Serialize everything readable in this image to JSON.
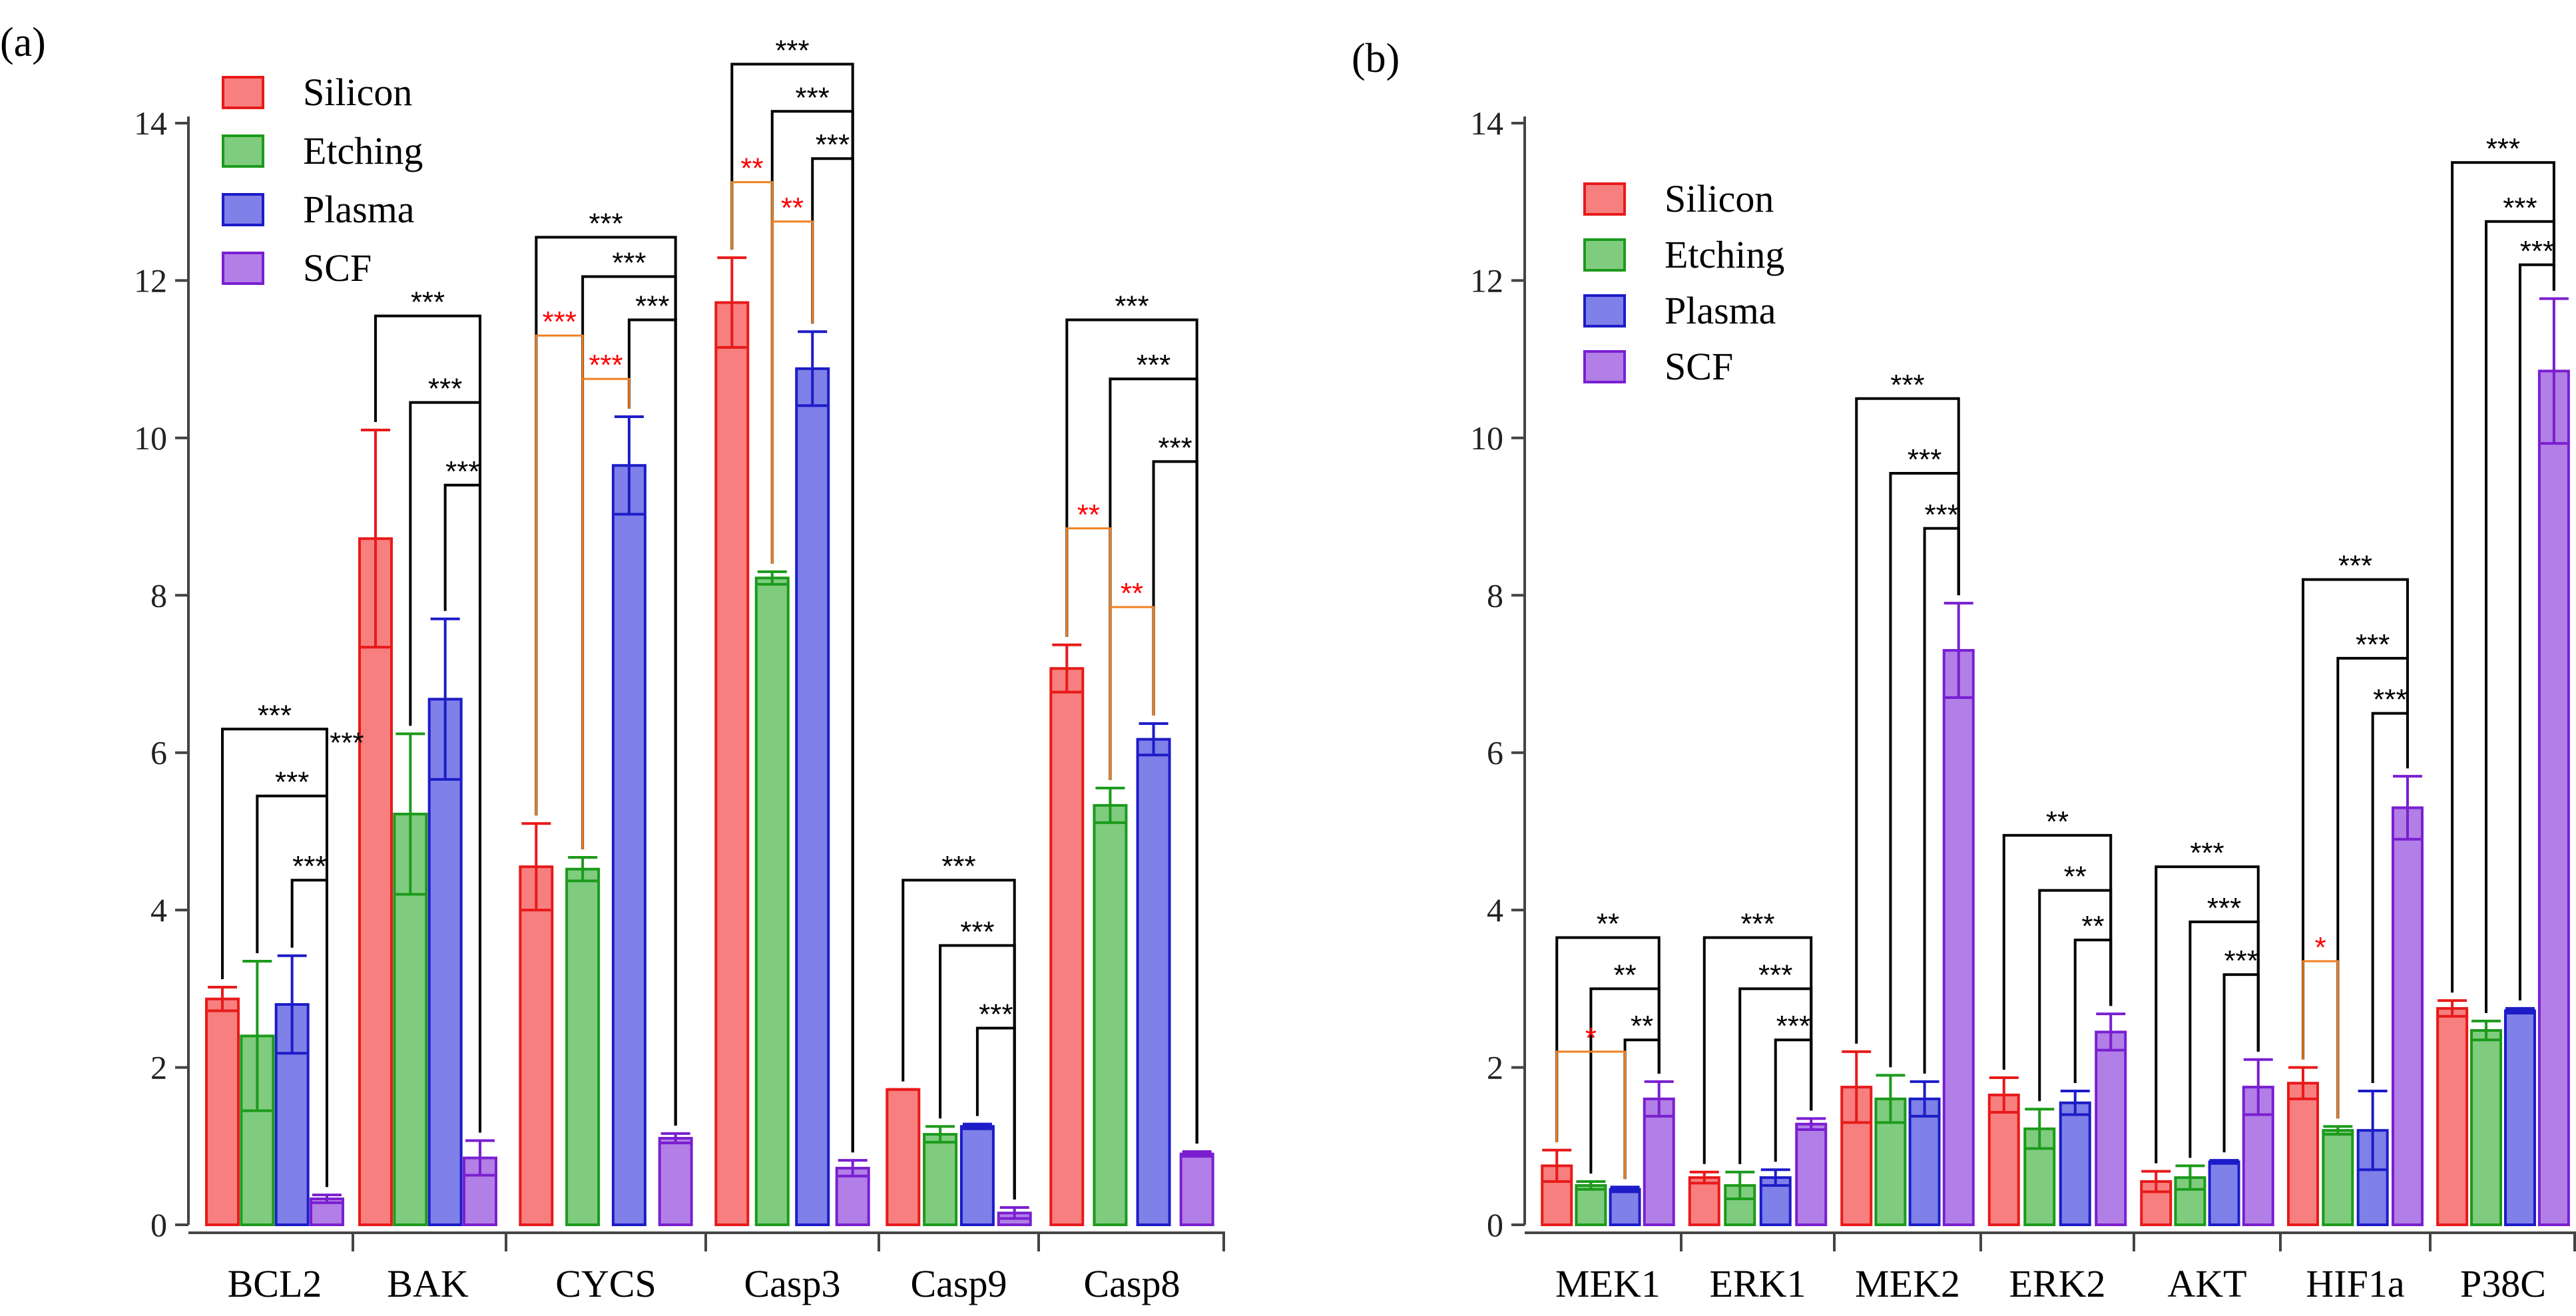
{
  "colors": {
    "Silicon": {
      "fill": "#f77f7f",
      "stroke": "#e81a1a"
    },
    "Etching": {
      "fill": "#7fcc7f",
      "stroke": "#1c9a1c"
    },
    "Plasma": {
      "fill": "#7f80e8",
      "stroke": "#1c1cc8"
    },
    "SCF": {
      "fill": "#b27fe6",
      "stroke": "#7a1fd0"
    },
    "sig_black": "#000000",
    "sig_orange": "#f08020",
    "sig_red_text": "#ff0000"
  },
  "chart_data": [
    {
      "type": "bar",
      "panel_label": "(a)",
      "title": "",
      "xlabel": "",
      "ylabel": "",
      "ylim": [
        0,
        14
      ],
      "yticks": [
        "0",
        "2",
        "4",
        "6",
        "8",
        "10",
        "12",
        "14"
      ],
      "legend_position": "top-left",
      "categories": [
        "BCL2",
        "BAK",
        "CYCS",
        "Casp3",
        "Casp9",
        "Casp8"
      ],
      "series": [
        {
          "name": "Silicon",
          "values": [
            2.87,
            8.72,
            4.55,
            11.72,
            1.72,
            7.07
          ],
          "errors": [
            0.15,
            1.38,
            0.55,
            0.57,
            0.0,
            0.3
          ]
        },
        {
          "name": "Etching",
          "values": [
            2.4,
            5.22,
            4.52,
            8.22,
            1.15,
            5.33
          ],
          "errors": [
            0.95,
            1.02,
            0.15,
            0.08,
            0.1,
            0.22
          ]
        },
        {
          "name": "Plasma",
          "values": [
            2.8,
            6.68,
            9.65,
            10.88,
            1.25,
            6.17
          ],
          "errors": [
            0.62,
            1.02,
            0.62,
            0.47,
            0.03,
            0.2
          ]
        },
        {
          "name": "SCF",
          "values": [
            0.33,
            0.85,
            1.1,
            0.72,
            0.15,
            0.9
          ],
          "errors": [
            0.05,
            0.22,
            0.06,
            0.1,
            0.07,
            0.03
          ]
        }
      ],
      "significance": [
        {
          "category": "BCL2",
          "from": 0,
          "to": 3,
          "y": 6.3,
          "label": "***",
          "color": "sig_black"
        },
        {
          "category": "BCL2",
          "from": 1,
          "to": 3,
          "y": 5.45,
          "label": "***",
          "color": "sig_black"
        },
        {
          "category": "BCL2",
          "from": 2,
          "to": 3,
          "y": 4.38,
          "label": "***",
          "color": "sig_black"
        },
        {
          "category": "BCL2",
          "from": 3,
          "to": 3,
          "y": 5.95,
          "label": "***",
          "color": "sig_black"
        },
        {
          "category": "BAK",
          "from": 0,
          "to": 3,
          "y": 11.55,
          "label": "***",
          "color": "sig_black"
        },
        {
          "category": "BAK",
          "from": 1,
          "to": 3,
          "y": 10.45,
          "label": "***",
          "color": "sig_black"
        },
        {
          "category": "BAK",
          "from": 2,
          "to": 3,
          "y": 9.4,
          "label": "***",
          "color": "sig_black"
        },
        {
          "category": "CYCS",
          "from": 0,
          "to": 3,
          "y": 12.55,
          "label": "***",
          "color": "sig_black"
        },
        {
          "category": "CYCS",
          "from": 1,
          "to": 3,
          "y": 12.05,
          "label": "***",
          "color": "sig_black"
        },
        {
          "category": "CYCS",
          "from": 2,
          "to": 3,
          "y": 11.5,
          "label": "***",
          "color": "sig_black"
        },
        {
          "category": "CYCS",
          "from": 0,
          "to": 1,
          "y": 11.3,
          "label": "***",
          "color": "sig_orange"
        },
        {
          "category": "CYCS",
          "from": 1,
          "to": 2,
          "y": 10.75,
          "label": "***",
          "color": "sig_orange"
        },
        {
          "category": "Casp3",
          "from": 0,
          "to": 3,
          "y": 14.75,
          "label": "***",
          "color": "sig_black"
        },
        {
          "category": "Casp3",
          "from": 1,
          "to": 3,
          "y": 14.15,
          "label": "***",
          "color": "sig_black"
        },
        {
          "category": "Casp3",
          "from": 2,
          "to": 3,
          "y": 13.55,
          "label": "***",
          "color": "sig_black"
        },
        {
          "category": "Casp3",
          "from": 0,
          "to": 1,
          "y": 13.25,
          "label": "**",
          "color": "sig_orange"
        },
        {
          "category": "Casp3",
          "from": 1,
          "to": 2,
          "y": 12.75,
          "label": "**",
          "color": "sig_orange"
        },
        {
          "category": "Casp9",
          "from": 0,
          "to": 3,
          "y": 4.38,
          "label": "***",
          "color": "sig_black"
        },
        {
          "category": "Casp9",
          "from": 1,
          "to": 3,
          "y": 3.55,
          "label": "***",
          "color": "sig_black"
        },
        {
          "category": "Casp9",
          "from": 2,
          "to": 3,
          "y": 2.5,
          "label": "***",
          "color": "sig_black"
        },
        {
          "category": "Casp8",
          "from": 0,
          "to": 3,
          "y": 11.5,
          "label": "***",
          "color": "sig_black"
        },
        {
          "category": "Casp8",
          "from": 1,
          "to": 3,
          "y": 10.75,
          "label": "***",
          "color": "sig_black"
        },
        {
          "category": "Casp8",
          "from": 2,
          "to": 3,
          "y": 9.7,
          "label": "***",
          "color": "sig_black"
        },
        {
          "category": "Casp8",
          "from": 0,
          "to": 1,
          "y": 8.85,
          "label": "**",
          "color": "sig_orange"
        },
        {
          "category": "Casp8",
          "from": 1,
          "to": 2,
          "y": 7.85,
          "label": "**",
          "color": "sig_orange"
        }
      ]
    },
    {
      "type": "bar",
      "panel_label": "(b)",
      "title": "",
      "xlabel": "",
      "ylabel": "",
      "ylim": [
        0,
        14
      ],
      "yticks": [
        "0",
        "2",
        "4",
        "6",
        "8",
        "10",
        "12",
        "14"
      ],
      "legend_position": "top-left",
      "categories": [
        "MEK1",
        "ERK1",
        "MEK2",
        "ERK2",
        "AKT",
        "HIF1a",
        "P38C"
      ],
      "series": [
        {
          "name": "Silicon",
          "values": [
            0.75,
            0.6,
            1.75,
            1.65,
            0.55,
            1.8,
            2.75
          ],
          "errors": [
            0.2,
            0.07,
            0.45,
            0.22,
            0.13,
            0.2,
            0.1
          ]
        },
        {
          "name": "Etching",
          "values": [
            0.5,
            0.5,
            1.6,
            1.22,
            0.6,
            1.2,
            2.47
          ],
          "errors": [
            0.05,
            0.17,
            0.3,
            0.25,
            0.15,
            0.05,
            0.12
          ]
        },
        {
          "name": "Plasma",
          "values": [
            0.45,
            0.6,
            1.6,
            1.55,
            0.8,
            1.2,
            2.72
          ],
          "errors": [
            0.03,
            0.1,
            0.22,
            0.15,
            0.02,
            0.5,
            0.03
          ]
        },
        {
          "name": "SCF",
          "values": [
            1.6,
            1.28,
            7.3,
            2.45,
            1.75,
            5.3,
            10.85
          ],
          "errors": [
            0.22,
            0.07,
            0.6,
            0.23,
            0.35,
            0.4,
            0.92
          ]
        }
      ],
      "significance": [
        {
          "category": "MEK1",
          "from": 0,
          "to": 3,
          "y": 3.65,
          "label": "**",
          "color": "sig_black"
        },
        {
          "category": "MEK1",
          "from": 1,
          "to": 3,
          "y": 3.0,
          "label": "**",
          "color": "sig_black"
        },
        {
          "category": "MEK1",
          "from": 2,
          "to": 3,
          "y": 2.35,
          "label": "**",
          "color": "sig_black"
        },
        {
          "category": "MEK1",
          "from": 0,
          "to": 2,
          "y": 2.2,
          "label": "*",
          "color": "sig_orange"
        },
        {
          "category": "ERK1",
          "from": 0,
          "to": 3,
          "y": 3.65,
          "label": "***",
          "color": "sig_black"
        },
        {
          "category": "ERK1",
          "from": 1,
          "to": 3,
          "y": 3.0,
          "label": "***",
          "color": "sig_black"
        },
        {
          "category": "ERK1",
          "from": 2,
          "to": 3,
          "y": 2.35,
          "label": "***",
          "color": "sig_black"
        },
        {
          "category": "MEK2",
          "from": 0,
          "to": 3,
          "y": 10.5,
          "label": "***",
          "color": "sig_black"
        },
        {
          "category": "MEK2",
          "from": 1,
          "to": 3,
          "y": 9.55,
          "label": "***",
          "color": "sig_black"
        },
        {
          "category": "MEK2",
          "from": 2,
          "to": 3,
          "y": 8.85,
          "label": "***",
          "color": "sig_black"
        },
        {
          "category": "ERK2",
          "from": 0,
          "to": 3,
          "y": 4.95,
          "label": "**",
          "color": "sig_black"
        },
        {
          "category": "ERK2",
          "from": 1,
          "to": 3,
          "y": 4.25,
          "label": "**",
          "color": "sig_black"
        },
        {
          "category": "ERK2",
          "from": 2,
          "to": 3,
          "y": 3.62,
          "label": "**",
          "color": "sig_black"
        },
        {
          "category": "AKT",
          "from": 0,
          "to": 3,
          "y": 4.55,
          "label": "***",
          "color": "sig_black"
        },
        {
          "category": "AKT",
          "from": 1,
          "to": 3,
          "y": 3.85,
          "label": "***",
          "color": "sig_black"
        },
        {
          "category": "AKT",
          "from": 2,
          "to": 3,
          "y": 3.18,
          "label": "***",
          "color": "sig_black"
        },
        {
          "category": "HIF1a",
          "from": 0,
          "to": 3,
          "y": 8.2,
          "label": "***",
          "color": "sig_black"
        },
        {
          "category": "HIF1a",
          "from": 1,
          "to": 3,
          "y": 7.2,
          "label": "***",
          "color": "sig_black"
        },
        {
          "category": "HIF1a",
          "from": 2,
          "to": 3,
          "y": 6.5,
          "label": "***",
          "color": "sig_black"
        },
        {
          "category": "HIF1a",
          "from": 0,
          "to": 1,
          "y": 3.35,
          "label": "*",
          "color": "sig_orange"
        },
        {
          "category": "P38C",
          "from": 0,
          "to": 3,
          "y": 13.5,
          "label": "***",
          "color": "sig_black"
        },
        {
          "category": "P38C",
          "from": 1,
          "to": 3,
          "y": 12.75,
          "label": "***",
          "color": "sig_black"
        },
        {
          "category": "P38C",
          "from": 2,
          "to": 3,
          "y": 12.2,
          "label": "***",
          "color": "sig_black"
        }
      ]
    }
  ]
}
